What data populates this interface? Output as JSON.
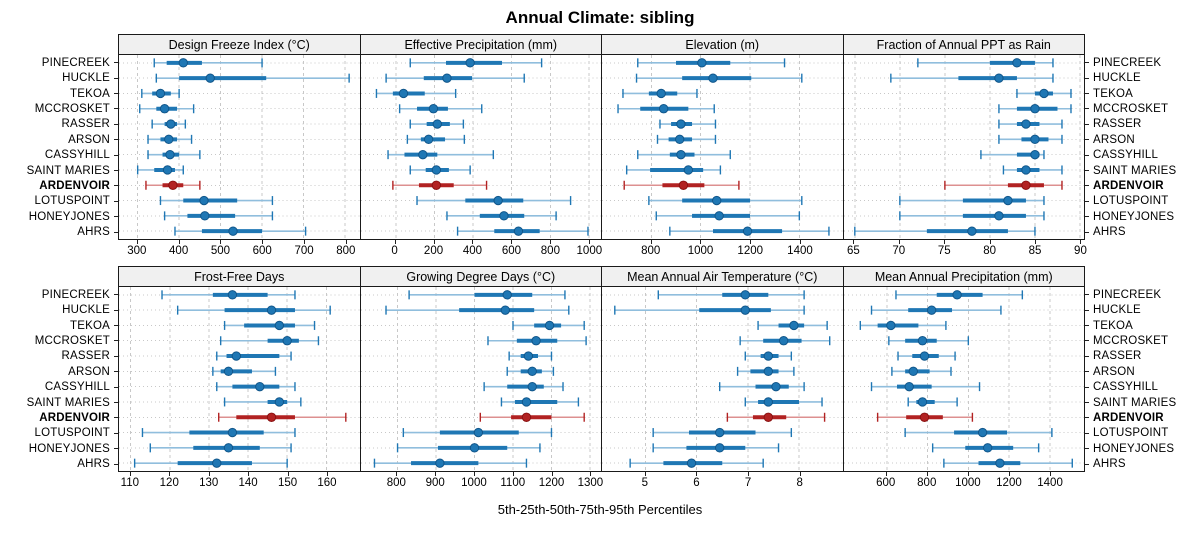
{
  "title": "Annual Climate: sibling",
  "caption": "5th-25th-50th-75th-95th Percentiles",
  "stations": [
    "PINECREEK",
    "HUCKLE",
    "TEKOA",
    "MCCROSKET",
    "RASSER",
    "ARSON",
    "CASSYHILL",
    "SAINT MARIES",
    "ARDENVOIR",
    "LOTUSPOINT",
    "HONEYJONES",
    "AHRS"
  ],
  "highlight_station": "ARDENVOIR",
  "colors": {
    "blue": "#1f77b4",
    "blue_light": "#90bedd",
    "blue_dot_edge": "#11568a",
    "red": "#b22222",
    "red_light": "#dd9090",
    "red_dot_edge": "#8a1111",
    "strip_bg": "#f0f0f0",
    "panel_border": "#1a1a1a",
    "grid": "#c8c8c8"
  },
  "chart_data": [
    {
      "type": "dotplot-percentiles",
      "title": "Design Freeze Index (°C)",
      "row": "top",
      "xlim": [
        255,
        835
      ],
      "ticks": [
        300,
        400,
        500,
        600,
        700,
        800
      ],
      "tick_labels": [
        "300",
        "400",
        "500",
        "600",
        "700",
        "800"
      ],
      "percentiles": [
        "5th",
        "25th",
        "50th",
        "75th",
        "95th"
      ],
      "values": [
        [
          340,
          370,
          410,
          455,
          600
        ],
        [
          345,
          400,
          475,
          610,
          810
        ],
        [
          310,
          335,
          355,
          380,
          400
        ],
        [
          305,
          345,
          365,
          395,
          435
        ],
        [
          335,
          365,
          380,
          395,
          415
        ],
        [
          325,
          355,
          375,
          395,
          430
        ],
        [
          325,
          360,
          378,
          400,
          450
        ],
        [
          300,
          340,
          372,
          390,
          410
        ],
        [
          320,
          360,
          385,
          410,
          450
        ],
        [
          355,
          410,
          460,
          540,
          625
        ],
        [
          365,
          420,
          462,
          535,
          625
        ],
        [
          390,
          455,
          530,
          600,
          705
        ]
      ]
    },
    {
      "type": "dotplot-percentiles",
      "title": "Effective Precipitation (mm)",
      "row": "top",
      "xlim": [
        -180,
        1065
      ],
      "ticks": [
        0,
        200,
        400,
        600,
        800,
        1000
      ],
      "tick_labels": [
        "0",
        "200",
        "400",
        "600",
        "800",
        "1000"
      ],
      "percentiles": [
        "5th",
        "25th",
        "50th",
        "75th",
        "95th"
      ],
      "values": [
        [
          75,
          260,
          385,
          550,
          755
        ],
        [
          -50,
          145,
          265,
          395,
          665
        ],
        [
          -100,
          -15,
          40,
          150,
          310
        ],
        [
          20,
          110,
          195,
          270,
          445
        ],
        [
          75,
          160,
          215,
          280,
          350
        ],
        [
          60,
          130,
          170,
          255,
          355
        ],
        [
          -40,
          45,
          140,
          215,
          505
        ],
        [
          75,
          155,
          210,
          275,
          385
        ],
        [
          -15,
          120,
          210,
          300,
          470
        ],
        [
          110,
          360,
          530,
          660,
          905
        ],
        [
          265,
          435,
          560,
          665,
          830
        ],
        [
          320,
          510,
          635,
          745,
          995
        ]
      ]
    },
    {
      "type": "dotplot-percentiles",
      "title": "Elevation (m)",
      "row": "top",
      "xlim": [
        600,
        1575
      ],
      "ticks": [
        800,
        1000,
        1200,
        1400
      ],
      "tick_labels": [
        "800",
        "1000",
        "1200",
        "1400"
      ],
      "percentiles": [
        "5th",
        "25th",
        "50th",
        "75th",
        "95th"
      ],
      "values": [
        [
          745,
          900,
          1005,
          1120,
          1340
        ],
        [
          740,
          925,
          1050,
          1205,
          1410
        ],
        [
          685,
          790,
          840,
          905,
          985
        ],
        [
          665,
          755,
          850,
          950,
          1055
        ],
        [
          835,
          880,
          920,
          965,
          1060
        ],
        [
          825,
          870,
          915,
          965,
          1060
        ],
        [
          745,
          875,
          920,
          975,
          1120
        ],
        [
          700,
          795,
          950,
          1010,
          1080
        ],
        [
          690,
          845,
          930,
          1015,
          1155
        ],
        [
          790,
          925,
          1065,
          1200,
          1410
        ],
        [
          820,
          965,
          1075,
          1200,
          1400
        ],
        [
          875,
          1050,
          1190,
          1330,
          1520
        ]
      ]
    },
    {
      "type": "dotplot-percentiles",
      "title": "Fraction of Annual PPT as Rain",
      "row": "top",
      "xlim": [
        63.8,
        90.5
      ],
      "ticks": [
        65,
        70,
        75,
        80,
        85,
        90
      ],
      "tick_labels": [
        "65",
        "70",
        "75",
        "80",
        "85",
        "90"
      ],
      "percentiles": [
        "5th",
        "25th",
        "50th",
        "75th",
        "95th"
      ],
      "values": [
        [
          72,
          80,
          83,
          85,
          87
        ],
        [
          69,
          76.5,
          81,
          83,
          87
        ],
        [
          83,
          85,
          86,
          87,
          89
        ],
        [
          81,
          83,
          85,
          87.5,
          89
        ],
        [
          81,
          83,
          84,
          85.5,
          88
        ],
        [
          81,
          83.5,
          85,
          86.5,
          88
        ],
        [
          79,
          83,
          85,
          85.5,
          86
        ],
        [
          81.5,
          83,
          84,
          85.5,
          88
        ],
        [
          75,
          82,
          84,
          86,
          88
        ],
        [
          70,
          77,
          82,
          84,
          86
        ],
        [
          70,
          77,
          81,
          84,
          86
        ],
        [
          65,
          73,
          78,
          82,
          85
        ]
      ]
    },
    {
      "type": "dotplot-percentiles",
      "title": "Frost-Free Days",
      "row": "bottom",
      "xlim": [
        107,
        168.5
      ],
      "ticks": [
        110,
        120,
        130,
        140,
        150,
        160
      ],
      "tick_labels": [
        "110",
        "120",
        "130",
        "140",
        "150",
        "160"
      ],
      "percentiles": [
        "5th",
        "25th",
        "50th",
        "75th",
        "95th"
      ],
      "values": [
        [
          118,
          131,
          136,
          145,
          152
        ],
        [
          122,
          134,
          146,
          152,
          161
        ],
        [
          134,
          139,
          148,
          152,
          157
        ],
        [
          133,
          145,
          150,
          153,
          158
        ],
        [
          132,
          134.5,
          137,
          148,
          151
        ],
        [
          131,
          133,
          135,
          141,
          147
        ],
        [
          132,
          136,
          143,
          148,
          152
        ],
        [
          134,
          145,
          148,
          150,
          153.5
        ],
        [
          132.5,
          137,
          146,
          152,
          165
        ],
        [
          113,
          125,
          136,
          144,
          152
        ],
        [
          115,
          126,
          135,
          143,
          151
        ],
        [
          111,
          122,
          132,
          141,
          150
        ]
      ]
    },
    {
      "type": "dotplot-percentiles",
      "title": "Growing Degree Days (°C)",
      "row": "bottom",
      "xlim": [
        705,
        1330
      ],
      "ticks": [
        800,
        900,
        1000,
        1100,
        1200,
        1300
      ],
      "tick_labels": [
        "800",
        "900",
        "1000",
        "1100",
        "1200",
        "1300"
      ],
      "percentiles": [
        "5th",
        "25th",
        "50th",
        "75th",
        "95th"
      ],
      "values": [
        [
          830,
          1000,
          1085,
          1150,
          1235
        ],
        [
          770,
          960,
          1080,
          1155,
          1245
        ],
        [
          1100,
          1155,
          1195,
          1225,
          1285
        ],
        [
          1035,
          1110,
          1160,
          1215,
          1290
        ],
        [
          1090,
          1120,
          1140,
          1165,
          1200
        ],
        [
          1085,
          1120,
          1150,
          1175,
          1205
        ],
        [
          1025,
          1085,
          1150,
          1180,
          1230
        ],
        [
          1070,
          1105,
          1135,
          1215,
          1270
        ],
        [
          1015,
          1095,
          1135,
          1200,
          1285
        ],
        [
          815,
          910,
          1010,
          1115,
          1200
        ],
        [
          800,
          905,
          1000,
          1085,
          1170
        ],
        [
          740,
          835,
          910,
          1010,
          1135
        ]
      ]
    },
    {
      "type": "dotplot-percentiles",
      "title": "Mean Annual Air Temperature (°C)",
      "row": "bottom",
      "xlim": [
        4.15,
        8.85
      ],
      "ticks": [
        5,
        6,
        7,
        8
      ],
      "tick_labels": [
        "5",
        "6",
        "7",
        "8"
      ],
      "percentiles": [
        "5th",
        "25th",
        "50th",
        "75th",
        "95th"
      ],
      "values": [
        [
          5.25,
          6.5,
          6.95,
          7.4,
          8.1
        ],
        [
          4.4,
          6.05,
          6.95,
          7.45,
          8.1
        ],
        [
          7.2,
          7.6,
          7.9,
          8.1,
          8.55
        ],
        [
          6.85,
          7.3,
          7.7,
          8.05,
          8.6
        ],
        [
          6.95,
          7.25,
          7.4,
          7.6,
          7.85
        ],
        [
          6.8,
          7.05,
          7.4,
          7.6,
          7.9
        ],
        [
          6.45,
          7.15,
          7.55,
          7.8,
          8.1
        ],
        [
          6.95,
          7.2,
          7.4,
          8.0,
          8.45
        ],
        [
          6.6,
          7.1,
          7.4,
          7.75,
          8.5
        ],
        [
          5.15,
          5.85,
          6.45,
          7.15,
          7.85
        ],
        [
          5.15,
          5.8,
          6.45,
          6.95,
          7.6
        ],
        [
          4.7,
          5.35,
          5.9,
          6.5,
          7.3
        ]
      ]
    },
    {
      "type": "dotplot-percentiles",
      "title": "Mean Annual Precipitation (mm)",
      "row": "bottom",
      "xlim": [
        390,
        1570
      ],
      "ticks": [
        600,
        800,
        1000,
        1200,
        1400
      ],
      "tick_labels": [
        "600",
        "800",
        "1000",
        "1200",
        "1400"
      ],
      "percentiles": [
        "5th",
        "25th",
        "50th",
        "75th",
        "95th"
      ],
      "values": [
        [
          645,
          845,
          945,
          1070,
          1265
        ],
        [
          525,
          705,
          820,
          920,
          1160
        ],
        [
          470,
          555,
          620,
          755,
          890
        ],
        [
          610,
          690,
          775,
          845,
          1000
        ],
        [
          655,
          725,
          785,
          855,
          935
        ],
        [
          625,
          690,
          730,
          810,
          915
        ],
        [
          525,
          650,
          710,
          820,
          1055
        ],
        [
          705,
          745,
          775,
          835,
          945
        ],
        [
          555,
          695,
          785,
          875,
          1020
        ],
        [
          690,
          930,
          1070,
          1190,
          1410
        ],
        [
          825,
          985,
          1095,
          1220,
          1345
        ],
        [
          880,
          1050,
          1155,
          1255,
          1510
        ]
      ]
    }
  ]
}
